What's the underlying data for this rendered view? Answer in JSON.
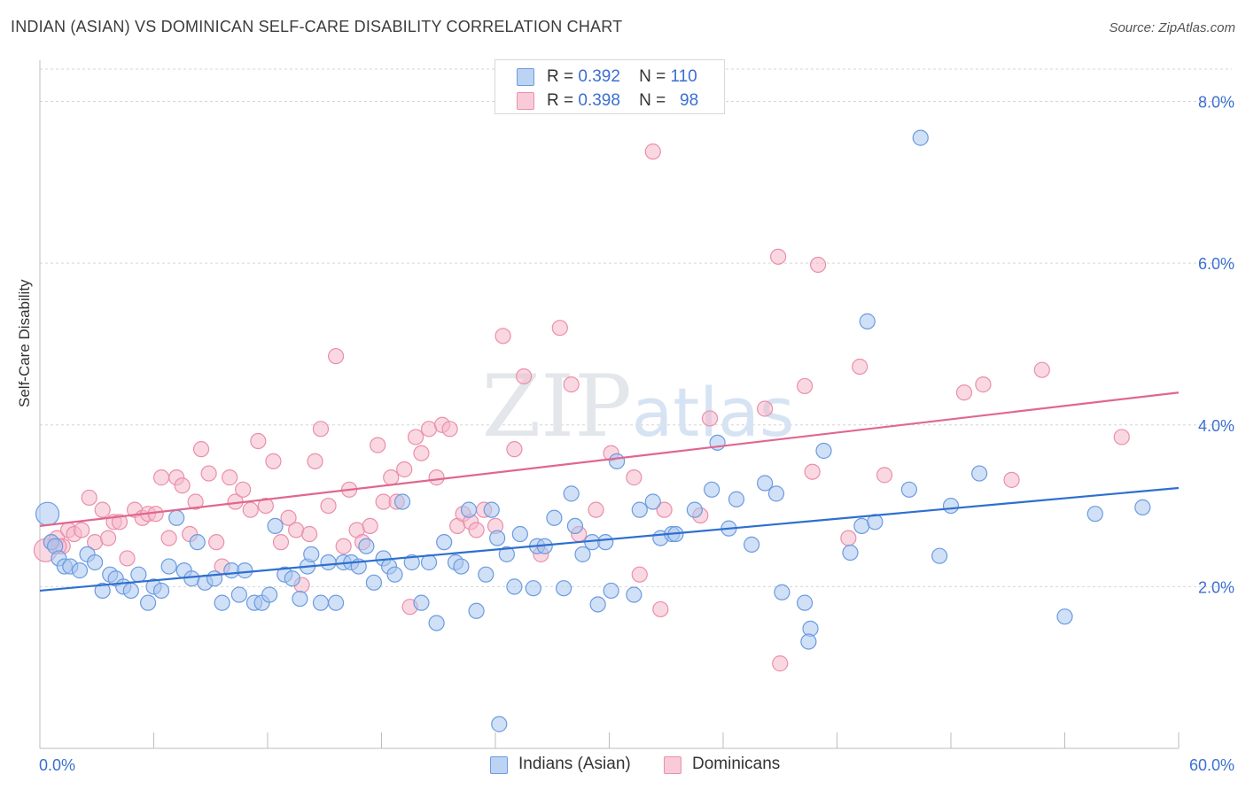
{
  "title": "INDIAN (ASIAN) VS DOMINICAN SELF-CARE DISABILITY CORRELATION CHART",
  "source": "Source: ZipAtlas.com",
  "watermark": "ZIPatlas",
  "legend": {
    "rows": [
      {
        "r_label": "R =",
        "r_value": "0.392",
        "n_label": "N =",
        "n_value": "110"
      },
      {
        "r_label": "R =",
        "r_value": "0.398",
        "n_label": "N =",
        "n_value": "98"
      }
    ]
  },
  "bottom_legend": [
    "Indians (Asian)",
    "Dominicans"
  ],
  "colors": {
    "blue_fill": "#a9c6ef",
    "blue_stroke": "#6b9be0",
    "blue_line": "#2e6fd0",
    "pink_fill": "#f6b8cb",
    "pink_stroke": "#ea8fab",
    "pink_line": "#e0678f",
    "grid": "#d6d6d6",
    "axis_text": "#3a6fd0"
  },
  "chart_data": {
    "type": "scatter",
    "title": "INDIAN (ASIAN) VS DOMINICAN SELF-CARE DISABILITY CORRELATION CHART",
    "xlabel": "",
    "ylabel": "Self-Care Disability",
    "xlim": [
      0,
      60
    ],
    "ylim": [
      0,
      8.4
    ],
    "x_tick_labels": [
      "0.0%",
      "60.0%"
    ],
    "y_ticks": [
      2,
      4,
      6,
      8
    ],
    "y_tick_labels": [
      "2.0%",
      "4.0%",
      "6.0%",
      "8.0%"
    ],
    "series": [
      {
        "name": "Indians (Asian)",
        "r": 0.392,
        "n": 110,
        "trend": {
          "x": [
            0,
            60
          ],
          "y": [
            1.95,
            3.22
          ]
        },
        "points": [
          [
            0.4,
            2.9
          ],
          [
            0.6,
            2.55
          ],
          [
            0.8,
            2.5
          ],
          [
            1.0,
            2.35
          ],
          [
            1.3,
            2.25
          ],
          [
            1.6,
            2.25
          ],
          [
            2.1,
            2.2
          ],
          [
            2.5,
            2.4
          ],
          [
            2.9,
            2.3
          ],
          [
            3.3,
            1.95
          ],
          [
            3.7,
            2.15
          ],
          [
            4.0,
            2.1
          ],
          [
            4.4,
            2.0
          ],
          [
            4.8,
            1.95
          ],
          [
            5.2,
            2.15
          ],
          [
            5.7,
            1.8
          ],
          [
            6.0,
            2.0
          ],
          [
            6.4,
            1.95
          ],
          [
            6.8,
            2.25
          ],
          [
            7.2,
            2.85
          ],
          [
            7.6,
            2.2
          ],
          [
            8.0,
            2.1
          ],
          [
            8.3,
            2.55
          ],
          [
            8.7,
            2.05
          ],
          [
            9.2,
            2.1
          ],
          [
            9.6,
            1.8
          ],
          [
            10.1,
            2.2
          ],
          [
            10.5,
            1.9
          ],
          [
            10.8,
            2.2
          ],
          [
            11.3,
            1.8
          ],
          [
            11.7,
            1.8
          ],
          [
            12.1,
            1.9
          ],
          [
            12.4,
            2.75
          ],
          [
            12.9,
            2.15
          ],
          [
            13.3,
            2.1
          ],
          [
            13.7,
            1.85
          ],
          [
            14.1,
            2.25
          ],
          [
            14.3,
            2.4
          ],
          [
            14.8,
            1.8
          ],
          [
            15.2,
            2.3
          ],
          [
            15.6,
            1.8
          ],
          [
            16.0,
            2.3
          ],
          [
            16.4,
            2.3
          ],
          [
            16.8,
            2.25
          ],
          [
            17.2,
            2.5
          ],
          [
            17.6,
            2.05
          ],
          [
            18.1,
            2.35
          ],
          [
            18.4,
            2.25
          ],
          [
            18.7,
            2.15
          ],
          [
            19.1,
            3.05
          ],
          [
            19.6,
            2.3
          ],
          [
            20.1,
            1.8
          ],
          [
            20.5,
            2.3
          ],
          [
            20.9,
            1.55
          ],
          [
            21.3,
            2.55
          ],
          [
            21.9,
            2.3
          ],
          [
            22.2,
            2.25
          ],
          [
            22.6,
            2.95
          ],
          [
            23.0,
            1.7
          ],
          [
            23.5,
            2.15
          ],
          [
            23.8,
            2.95
          ],
          [
            24.1,
            2.6
          ],
          [
            24.6,
            2.4
          ],
          [
            25.0,
            2.0
          ],
          [
            25.3,
            2.65
          ],
          [
            26.0,
            1.98
          ],
          [
            26.2,
            2.5
          ],
          [
            26.6,
            2.5
          ],
          [
            27.1,
            2.85
          ],
          [
            27.6,
            1.98
          ],
          [
            28.0,
            3.15
          ],
          [
            28.2,
            2.75
          ],
          [
            28.6,
            2.4
          ],
          [
            29.1,
            2.55
          ],
          [
            29.4,
            1.78
          ],
          [
            29.8,
            2.55
          ],
          [
            30.1,
            1.95
          ],
          [
            30.4,
            3.55
          ],
          [
            31.3,
            1.9
          ],
          [
            31.6,
            2.95
          ],
          [
            32.3,
            3.05
          ],
          [
            32.7,
            2.6
          ],
          [
            33.3,
            2.65
          ],
          [
            33.5,
            2.65
          ],
          [
            34.5,
            2.95
          ],
          [
            35.4,
            3.2
          ],
          [
            35.7,
            3.78
          ],
          [
            36.3,
            2.72
          ],
          [
            36.7,
            3.08
          ],
          [
            37.5,
            2.52
          ],
          [
            38.2,
            3.28
          ],
          [
            38.8,
            3.15
          ],
          [
            39.1,
            1.93
          ],
          [
            40.3,
            1.8
          ],
          [
            40.6,
            1.48
          ],
          [
            40.5,
            1.32
          ],
          [
            41.3,
            3.68
          ],
          [
            42.7,
            2.42
          ],
          [
            43.3,
            2.75
          ],
          [
            44.0,
            2.8
          ],
          [
            43.6,
            5.28
          ],
          [
            45.8,
            3.2
          ],
          [
            46.4,
            7.55
          ],
          [
            47.4,
            2.38
          ],
          [
            48.0,
            3.0
          ],
          [
            49.5,
            3.4
          ],
          [
            54.0,
            1.63
          ],
          [
            55.6,
            2.9
          ],
          [
            58.1,
            2.98
          ],
          [
            24.2,
            0.3
          ]
        ]
      },
      {
        "name": "Dominicans",
        "r": 0.398,
        "n": 98,
        "trend": {
          "x": [
            0,
            60
          ],
          "y": [
            2.75,
            4.4
          ]
        },
        "points": [
          [
            0.3,
            2.45
          ],
          [
            0.6,
            2.55
          ],
          [
            0.9,
            2.6
          ],
          [
            1.2,
            2.5
          ],
          [
            1.5,
            2.7
          ],
          [
            1.8,
            2.65
          ],
          [
            2.2,
            2.7
          ],
          [
            2.6,
            3.1
          ],
          [
            2.9,
            2.55
          ],
          [
            3.3,
            2.95
          ],
          [
            3.6,
            2.6
          ],
          [
            3.9,
            2.8
          ],
          [
            4.2,
            2.8
          ],
          [
            4.6,
            2.35
          ],
          [
            5.0,
            2.95
          ],
          [
            5.4,
            2.85
          ],
          [
            5.7,
            2.9
          ],
          [
            6.1,
            2.9
          ],
          [
            6.4,
            3.35
          ],
          [
            6.8,
            2.6
          ],
          [
            7.2,
            3.35
          ],
          [
            7.5,
            3.25
          ],
          [
            7.9,
            2.65
          ],
          [
            8.2,
            3.05
          ],
          [
            8.5,
            3.7
          ],
          [
            8.9,
            3.4
          ],
          [
            9.3,
            2.55
          ],
          [
            9.6,
            2.25
          ],
          [
            10.0,
            3.35
          ],
          [
            10.3,
            3.05
          ],
          [
            10.7,
            3.2
          ],
          [
            11.1,
            2.95
          ],
          [
            11.5,
            3.8
          ],
          [
            11.9,
            3.0
          ],
          [
            12.3,
            3.55
          ],
          [
            12.7,
            2.55
          ],
          [
            13.1,
            2.85
          ],
          [
            13.5,
            2.7
          ],
          [
            13.8,
            2.02
          ],
          [
            14.2,
            2.65
          ],
          [
            14.5,
            3.55
          ],
          [
            14.8,
            3.95
          ],
          [
            15.2,
            3.0
          ],
          [
            15.6,
            4.85
          ],
          [
            16.0,
            2.5
          ],
          [
            16.3,
            3.2
          ],
          [
            16.7,
            2.7
          ],
          [
            17.0,
            2.55
          ],
          [
            17.4,
            2.75
          ],
          [
            17.8,
            3.75
          ],
          [
            18.1,
            3.05
          ],
          [
            18.5,
            3.35
          ],
          [
            18.8,
            3.05
          ],
          [
            19.2,
            3.45
          ],
          [
            19.5,
            1.75
          ],
          [
            19.8,
            3.85
          ],
          [
            20.1,
            3.65
          ],
          [
            20.5,
            3.95
          ],
          [
            20.9,
            3.35
          ],
          [
            21.2,
            4.0
          ],
          [
            21.6,
            3.95
          ],
          [
            22.0,
            2.75
          ],
          [
            22.3,
            2.9
          ],
          [
            22.7,
            2.8
          ],
          [
            23.0,
            2.7
          ],
          [
            23.4,
            2.95
          ],
          [
            24.0,
            2.75
          ],
          [
            24.4,
            5.1
          ],
          [
            25.0,
            3.7
          ],
          [
            25.5,
            4.6
          ],
          [
            26.4,
            2.4
          ],
          [
            27.4,
            5.2
          ],
          [
            28.0,
            4.5
          ],
          [
            28.4,
            2.65
          ],
          [
            29.3,
            2.95
          ],
          [
            30.1,
            3.65
          ],
          [
            31.3,
            3.35
          ],
          [
            31.6,
            2.15
          ],
          [
            32.3,
            7.38
          ],
          [
            32.9,
            2.95
          ],
          [
            32.7,
            1.72
          ],
          [
            34.8,
            2.88
          ],
          [
            35.3,
            4.08
          ],
          [
            38.2,
            4.2
          ],
          [
            38.9,
            6.08
          ],
          [
            39.0,
            1.05
          ],
          [
            40.3,
            4.48
          ],
          [
            40.7,
            3.42
          ],
          [
            41.0,
            5.98
          ],
          [
            42.6,
            2.6
          ],
          [
            43.2,
            4.72
          ],
          [
            44.5,
            3.38
          ],
          [
            48.7,
            4.4
          ],
          [
            49.7,
            4.5
          ],
          [
            51.2,
            3.32
          ],
          [
            52.8,
            4.68
          ],
          [
            57.0,
            3.85
          ],
          [
            1.0,
            2.5
          ]
        ]
      }
    ]
  }
}
